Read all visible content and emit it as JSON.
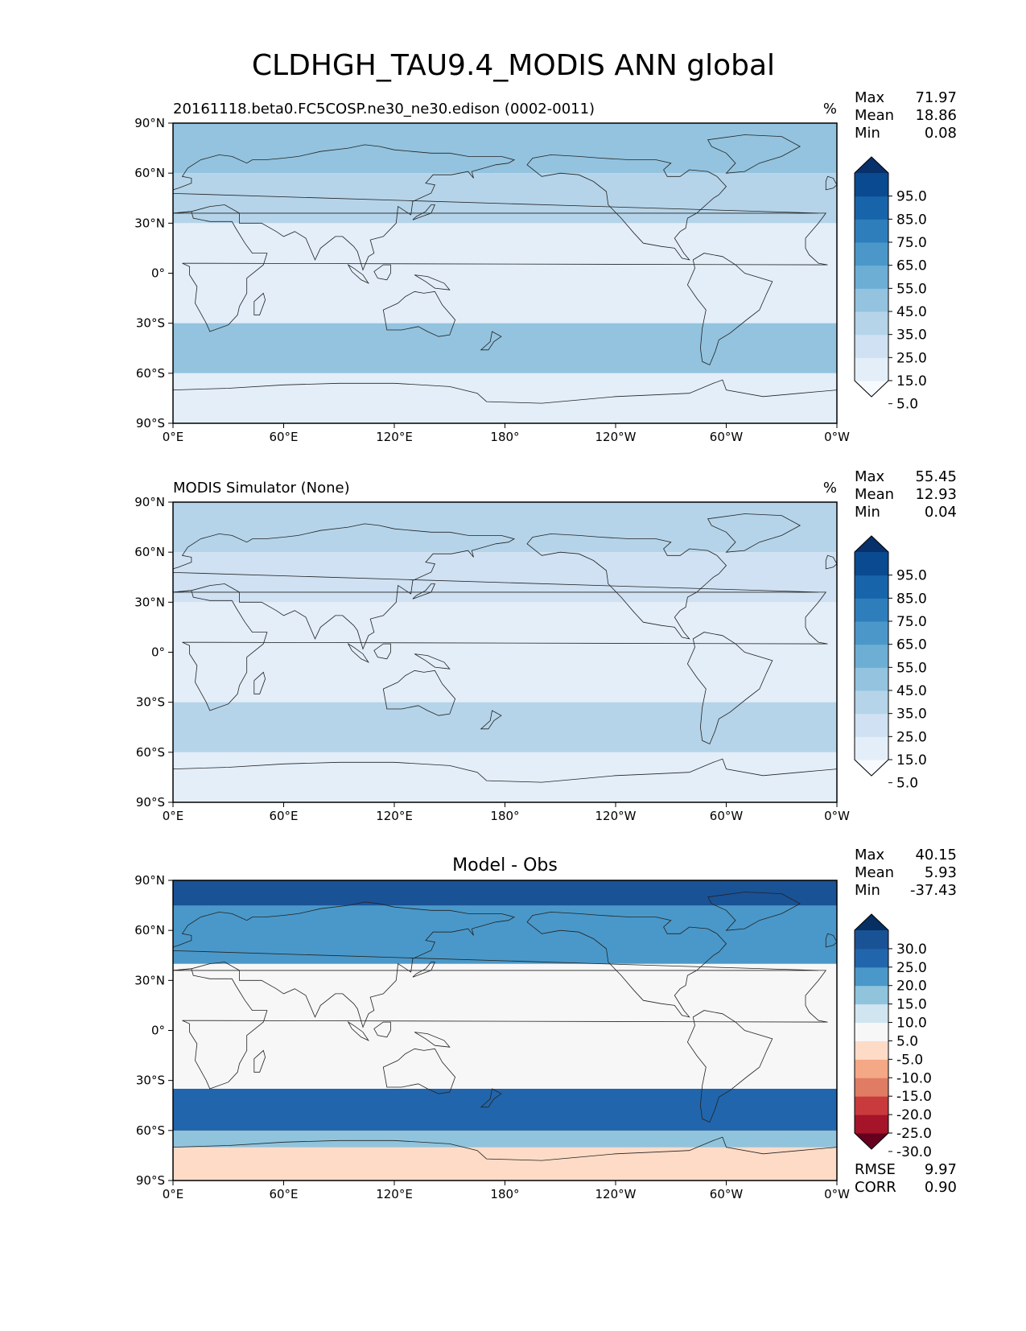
{
  "page": {
    "title": "CLDHGH_TAU9.4_MODIS ANN global"
  },
  "axes": {
    "y_ticks": [
      "90°N",
      "60°N",
      "30°N",
      "0°",
      "30°S",
      "60°S",
      "90°S"
    ],
    "x_ticks": [
      "0°E",
      "60°E",
      "120°E",
      "180°",
      "120°W",
      "60°W",
      "0°W"
    ]
  },
  "panels": [
    {
      "id": "test",
      "left_title": "20161118.beta0.FC5COSP.ne30_ne30.edison (0002-0011)",
      "center_title": "",
      "units": "%",
      "stats": [
        {
          "label": "Max",
          "value": "71.97"
        },
        {
          "label": "Mean",
          "value": "18.86"
        },
        {
          "label": "Min",
          "value": "0.08"
        }
      ],
      "colorbar": {
        "ticks": [
          "95.0",
          "85.0",
          "75.0",
          "65.0",
          "55.0",
          "45.0",
          "35.0",
          "25.0",
          "15.0",
          "5.0"
        ],
        "colors": [
          "#f7fbff",
          "#e3eef9",
          "#cfe1f2",
          "#b5d4e9",
          "#93c3df",
          "#6daed5",
          "#4b97c9",
          "#2f7ebc",
          "#1864aa",
          "#0a4a90",
          "#08306b"
        ]
      },
      "chart_data": {
        "type": "heatmap",
        "xlim": [
          0,
          360
        ],
        "ylim": [
          -90,
          90
        ],
        "zonal_bands_level": [
          {
            "lat_range": [
              60,
              90
            ],
            "level": 4
          },
          {
            "lat_range": [
              30,
              60
            ],
            "level": 3
          },
          {
            "lat_range": [
              -30,
              30
            ],
            "level": 1
          },
          {
            "lat_range": [
              -60,
              -30
            ],
            "level": 4
          },
          {
            "lat_range": [
              -90,
              -60
            ],
            "level": 1
          }
        ]
      },
      "bottom_stats": []
    },
    {
      "id": "ref",
      "left_title": "MODIS Simulator (None)",
      "center_title": "",
      "units": "%",
      "stats": [
        {
          "label": "Max",
          "value": "55.45"
        },
        {
          "label": "Mean",
          "value": "12.93"
        },
        {
          "label": "Min",
          "value": "0.04"
        }
      ],
      "colorbar": {
        "ticks": [
          "95.0",
          "85.0",
          "75.0",
          "65.0",
          "55.0",
          "45.0",
          "35.0",
          "25.0",
          "15.0",
          "5.0"
        ],
        "colors": [
          "#f7fbff",
          "#e3eef9",
          "#cfe1f2",
          "#b5d4e9",
          "#93c3df",
          "#6daed5",
          "#4b97c9",
          "#2f7ebc",
          "#1864aa",
          "#0a4a90",
          "#08306b"
        ]
      },
      "chart_data": {
        "type": "heatmap",
        "xlim": [
          0,
          360
        ],
        "ylim": [
          -90,
          90
        ],
        "zonal_bands_level": [
          {
            "lat_range": [
              60,
              90
            ],
            "level": 3
          },
          {
            "lat_range": [
              30,
              60
            ],
            "level": 2
          },
          {
            "lat_range": [
              -30,
              30
            ],
            "level": 1
          },
          {
            "lat_range": [
              -60,
              -30
            ],
            "level": 3
          },
          {
            "lat_range": [
              -90,
              -60
            ],
            "level": 1
          }
        ]
      },
      "bottom_stats": []
    },
    {
      "id": "diff",
      "left_title": "",
      "center_title": "Model - Obs",
      "units": "",
      "stats": [
        {
          "label": "Max",
          "value": "40.15"
        },
        {
          "label": "Mean",
          "value": "5.93"
        },
        {
          "label": "Min",
          "value": "-37.43"
        }
      ],
      "colorbar": {
        "ticks": [
          "30.0",
          "25.0",
          "20.0",
          "15.0",
          "10.0",
          "5.0",
          "-5.0",
          "-10.0",
          "-15.0",
          "-20.0",
          "-25.0",
          "-30.0"
        ],
        "colors": [
          "#67001f",
          "#a51429",
          "#c93a3c",
          "#e07b64",
          "#f4a885",
          "#fddbc7",
          "#f7f7f7",
          "#d1e5f0",
          "#90c4dd",
          "#4a98c9",
          "#2166ac",
          "#1a5296",
          "#053061"
        ]
      },
      "chart_data": {
        "type": "heatmap",
        "xlim": [
          0,
          360
        ],
        "ylim": [
          -90,
          90
        ],
        "zonal_bands_level": [
          {
            "lat_range": [
              75,
              90
            ],
            "level": 11
          },
          {
            "lat_range": [
              40,
              75
            ],
            "level": 9
          },
          {
            "lat_range": [
              -35,
              40
            ],
            "level": 6
          },
          {
            "lat_range": [
              -60,
              -35
            ],
            "level": 10
          },
          {
            "lat_range": [
              -70,
              -60
            ],
            "level": 8
          },
          {
            "lat_range": [
              -90,
              -70
            ],
            "level": 5
          }
        ]
      },
      "bottom_stats": [
        {
          "label": "RMSE",
          "value": "9.97"
        },
        {
          "label": "CORR",
          "value": "0.90"
        }
      ]
    }
  ]
}
